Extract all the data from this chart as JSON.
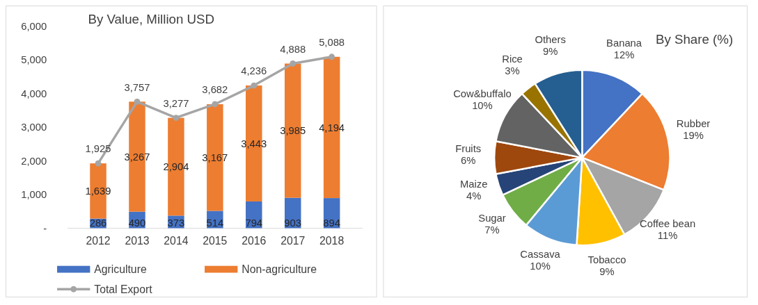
{
  "chart_data": [
    {
      "type": "bar",
      "title": "By Value, Million USD",
      "categories": [
        "2012",
        "2013",
        "2014",
        "2015",
        "2016",
        "2017",
        "2018"
      ],
      "stacked": true,
      "legend": "bottom",
      "marker": "circle",
      "ylim": [
        0,
        6000
      ],
      "yticks": [
        {
          "value": 0,
          "label": "-"
        },
        {
          "value": 1000,
          "label": "1,000"
        },
        {
          "value": 2000,
          "label": "2,000"
        },
        {
          "value": 3000,
          "label": "3,000"
        },
        {
          "value": 4000,
          "label": "4,000"
        },
        {
          "value": 5000,
          "label": "5,000"
        },
        {
          "value": 6000,
          "label": "6,000"
        }
      ],
      "series": [
        {
          "name": "Agriculture",
          "color": "#4472c4",
          "values": [
            286,
            490,
            373,
            514,
            794,
            903,
            894
          ],
          "value_labels": [
            "286",
            "490",
            "373",
            "514",
            "794",
            "903",
            "894"
          ]
        },
        {
          "name": "Non-agriculture",
          "color": "#ed7d31",
          "values": [
            1639,
            3267,
            2904,
            3167,
            3443,
            3985,
            4194
          ],
          "value_labels": [
            "1,639",
            "3,267",
            "2,904",
            "3,167",
            "3,443",
            "3,985",
            "4,194"
          ]
        },
        {
          "name": "Total Export",
          "type": "line",
          "color": "#a5a5a5",
          "values": [
            1925,
            3757,
            3277,
            3682,
            4236,
            4888,
            5088
          ],
          "value_labels": [
            "1,925",
            "3,757",
            "3,277",
            "3,682",
            "4,236",
            "4,888",
            "5,088"
          ]
        }
      ]
    },
    {
      "type": "pie",
      "title": "By Share (%)",
      "categories": [
        "Banana",
        "Rubber",
        "Coffee bean",
        "Tobacco",
        "Cassava",
        "Sugar",
        "Maize",
        "Fruits",
        "Cow&buffalo",
        "Rice",
        "Others"
      ],
      "values": [
        12,
        19,
        11,
        9,
        10,
        7,
        4,
        6,
        10,
        3,
        9
      ],
      "value_labels": [
        "12%",
        "19%",
        "11%",
        "9%",
        "10%",
        "7%",
        "4%",
        "6%",
        "10%",
        "3%",
        "9%"
      ],
      "colors": [
        "#4472c4",
        "#ed7d31",
        "#a5a5a5",
        "#ffc000",
        "#5b9bd5",
        "#70ad47",
        "#264478",
        "#9e480e",
        "#636363",
        "#997300",
        "#255e91"
      ]
    }
  ]
}
